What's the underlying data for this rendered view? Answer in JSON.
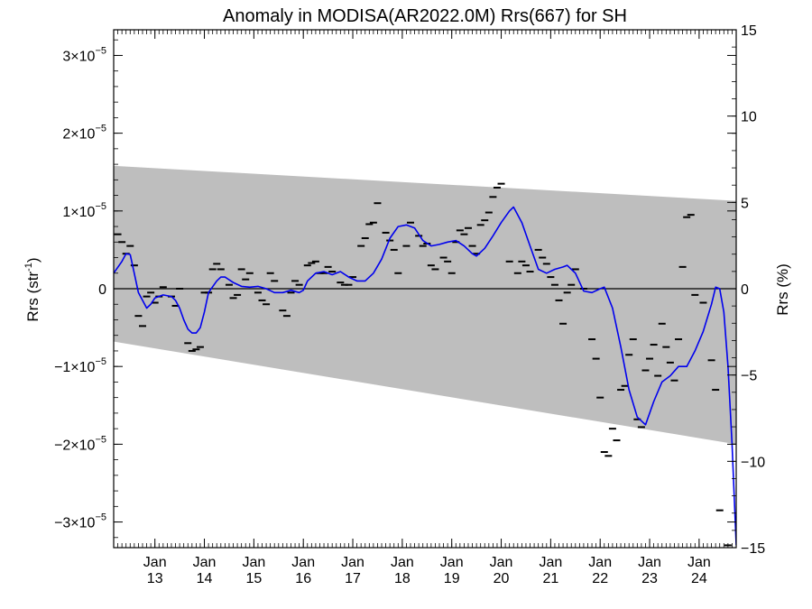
{
  "chart_data": {
    "type": "line",
    "title": "Anomaly in MODISA(AR2022.0M) Rrs(667) for SH",
    "ylabel_left": {
      "main": "Rrs (str",
      "exp": "-1",
      "end": ")"
    },
    "ylabel_right": "Rrs (%)",
    "x_range": [
      "2012-03",
      "2024-10"
    ],
    "y_left_range": [
      -3.33e-05,
      3.33e-05
    ],
    "y_right_range": [
      -15,
      15
    ],
    "y_left_ticks": [
      {
        "value": 3e-05,
        "mant": "3",
        "exp": "−5"
      },
      {
        "value": 2e-05,
        "mant": "2",
        "exp": "−5"
      },
      {
        "value": 1e-05,
        "mant": "1",
        "exp": "−5"
      },
      {
        "value": 0,
        "plain": "0"
      },
      {
        "value": -1e-05,
        "mant": "−1",
        "exp": "−5"
      },
      {
        "value": -2e-05,
        "mant": "−2",
        "exp": "−5"
      },
      {
        "value": -3e-05,
        "mant": "−3",
        "exp": "−5"
      }
    ],
    "y_right_ticks": [
      "15",
      "10",
      "5",
      "0",
      "−5",
      "−10",
      "−15"
    ],
    "x_ticks": [
      {
        "year": 2013,
        "month": "Jan",
        "label": "13"
      },
      {
        "year": 2014,
        "month": "Jan",
        "label": "14"
      },
      {
        "year": 2015,
        "month": "Jan",
        "label": "15"
      },
      {
        "year": 2016,
        "month": "Jan",
        "label": "16"
      },
      {
        "year": 2017,
        "month": "Jan",
        "label": "17"
      },
      {
        "year": 2018,
        "month": "Jan",
        "label": "18"
      },
      {
        "year": 2019,
        "month": "Jan",
        "label": "19"
      },
      {
        "year": 2020,
        "month": "Jan",
        "label": "20"
      },
      {
        "year": 2021,
        "month": "Jan",
        "label": "21"
      },
      {
        "year": 2022,
        "month": "Jan",
        "label": "22"
      },
      {
        "year": 2023,
        "month": "Jan",
        "label": "23"
      },
      {
        "year": 2024,
        "month": "Jan",
        "label": "24"
      }
    ],
    "band": {
      "color": "#bebebe",
      "upper": [
        {
          "x": "2012-03",
          "y": 1.58e-05
        },
        {
          "x": "2024-10",
          "y": 1.13e-05
        }
      ],
      "lower": [
        {
          "x": "2012-03",
          "y": -6.8e-06
        },
        {
          "x": "2024-10",
          "y": -2e-05
        }
      ]
    },
    "zero_line": true,
    "series": [
      {
        "kind": "line",
        "color": "#0000ee",
        "points": [
          [
            "2012-03",
            2e-06
          ],
          [
            "2012-05",
            3.5e-06
          ],
          [
            "2012-06",
            4.5e-06
          ],
          [
            "2012-07",
            4.4e-06
          ],
          [
            "2012-08",
            2e-06
          ],
          [
            "2012-09",
            -5e-07
          ],
          [
            "2012-10",
            -1.5e-06
          ],
          [
            "2012-11",
            -2.5e-06
          ],
          [
            "2012-12",
            -2e-06
          ],
          [
            "2013-01",
            -1.2e-06
          ],
          [
            "2013-03",
            -8e-07
          ],
          [
            "2013-05",
            -1e-06
          ],
          [
            "2013-06",
            -1.5e-06
          ],
          [
            "2013-07",
            -2.5e-06
          ],
          [
            "2013-08",
            -4e-06
          ],
          [
            "2013-09",
            -5.2e-06
          ],
          [
            "2013-10",
            -5.7e-06
          ],
          [
            "2013-11",
            -5.7e-06
          ],
          [
            "2013-12",
            -5e-06
          ],
          [
            "2014-01",
            -3e-06
          ],
          [
            "2014-02",
            -5e-07
          ],
          [
            "2014-04",
            1e-06
          ],
          [
            "2014-05",
            1.5e-06
          ],
          [
            "2014-06",
            1.5e-06
          ],
          [
            "2014-08",
            8e-07
          ],
          [
            "2014-10",
            3e-07
          ],
          [
            "2014-12",
            2e-07
          ],
          [
            "2015-02",
            3e-07
          ],
          [
            "2015-04",
            0.0
          ],
          [
            "2015-06",
            -5e-07
          ],
          [
            "2015-08",
            -5e-07
          ],
          [
            "2015-10",
            -2e-07
          ],
          [
            "2015-12",
            -5e-07
          ],
          [
            "2016-01",
            -2e-07
          ],
          [
            "2016-02",
            1e-06
          ],
          [
            "2016-04",
            2e-06
          ],
          [
            "2016-06",
            2.2e-06
          ],
          [
            "2016-08",
            1.8e-06
          ],
          [
            "2016-10",
            2.2e-06
          ],
          [
            "2016-12",
            1.5e-06
          ],
          [
            "2017-02",
            1e-06
          ],
          [
            "2017-04",
            1e-06
          ],
          [
            "2017-06",
            2e-06
          ],
          [
            "2017-08",
            3.8e-06
          ],
          [
            "2017-10",
            6.5e-06
          ],
          [
            "2017-12",
            8e-06
          ],
          [
            "2018-02",
            8.2e-06
          ],
          [
            "2018-04",
            7.8e-06
          ],
          [
            "2018-06",
            6.2e-06
          ],
          [
            "2018-08",
            5.5e-06
          ],
          [
            "2018-10",
            5.7e-06
          ],
          [
            "2018-12",
            6e-06
          ],
          [
            "2019-02",
            6.2e-06
          ],
          [
            "2019-04",
            5.5e-06
          ],
          [
            "2019-06",
            4.5e-06
          ],
          [
            "2019-07",
            4.2e-06
          ],
          [
            "2019-09",
            5.2e-06
          ],
          [
            "2019-11",
            6.8e-06
          ],
          [
            "2020-01",
            8.5e-06
          ],
          [
            "2020-03",
            1e-05
          ],
          [
            "2020-04",
            1.05e-05
          ],
          [
            "2020-06",
            8.5e-06
          ],
          [
            "2020-08",
            5.5e-06
          ],
          [
            "2020-10",
            2.5e-06
          ],
          [
            "2020-12",
            2e-06
          ],
          [
            "2021-02",
            2.5e-06
          ],
          [
            "2021-04",
            2.8e-06
          ],
          [
            "2021-05",
            3e-06
          ],
          [
            "2021-07",
            2e-06
          ],
          [
            "2021-09",
            -3e-07
          ],
          [
            "2021-11",
            -5e-07
          ],
          [
            "2022-01",
            0.0
          ],
          [
            "2022-02",
            2e-07
          ],
          [
            "2022-04",
            -2.5e-06
          ],
          [
            "2022-06",
            -7.5e-06
          ],
          [
            "2022-08",
            -1.3e-05
          ],
          [
            "2022-10",
            -1.65e-05
          ],
          [
            "2022-12",
            -1.75e-05
          ],
          [
            "2023-02",
            -1.45e-05
          ],
          [
            "2023-04",
            -1.2e-05
          ],
          [
            "2023-06",
            -1.12e-05
          ],
          [
            "2023-08",
            -1e-05
          ],
          [
            "2023-10",
            -1e-05
          ],
          [
            "2023-12",
            -8e-06
          ],
          [
            "2024-02",
            -5.5e-06
          ],
          [
            "2024-04",
            -2e-06
          ],
          [
            "2024-05",
            2e-07
          ],
          [
            "2024-06",
            0.0
          ],
          [
            "2024-07",
            -3e-06
          ],
          [
            "2024-08",
            -1e-05
          ],
          [
            "2024-09",
            -2e-05
          ],
          [
            "2024-10",
            -3.3e-05
          ]
        ]
      },
      {
        "kind": "dash-markers",
        "color": "#000000",
        "points": [
          [
            "2012-04",
            7e-06
          ],
          [
            "2012-05",
            6e-06
          ],
          [
            "2012-06",
            4.5e-06
          ],
          [
            "2012-07",
            5.5e-06
          ],
          [
            "2012-08",
            3e-06
          ],
          [
            "2012-09",
            -3.5e-06
          ],
          [
            "2012-10",
            -4.8e-06
          ],
          [
            "2012-11",
            -1e-06
          ],
          [
            "2012-12",
            -5e-07
          ],
          [
            "2013-01",
            -1.8e-06
          ],
          [
            "2013-02",
            -1e-06
          ],
          [
            "2013-03",
            2e-07
          ],
          [
            "2013-05",
            -1e-06
          ],
          [
            "2013-06",
            -2.2e-06
          ],
          [
            "2013-07",
            0.0
          ],
          [
            "2013-09",
            -7e-06
          ],
          [
            "2013-10",
            -8e-06
          ],
          [
            "2013-11",
            -7.8e-06
          ],
          [
            "2013-12",
            -7.5e-06
          ],
          [
            "2014-01",
            -5e-07
          ],
          [
            "2014-02",
            -5e-07
          ],
          [
            "2014-03",
            2.5e-06
          ],
          [
            "2014-04",
            3.2e-06
          ],
          [
            "2014-05",
            2.5e-06
          ],
          [
            "2014-07",
            5e-07
          ],
          [
            "2014-08",
            -1.2e-06
          ],
          [
            "2014-09",
            -8e-07
          ],
          [
            "2014-10",
            2.5e-06
          ],
          [
            "2014-11",
            1.2e-06
          ],
          [
            "2014-12",
            2e-06
          ],
          [
            "2015-02",
            -5e-07
          ],
          [
            "2015-03",
            -1.5e-06
          ],
          [
            "2015-04",
            -2e-06
          ],
          [
            "2015-05",
            2e-06
          ],
          [
            "2015-06",
            1e-06
          ],
          [
            "2015-08",
            -2.8e-06
          ],
          [
            "2015-09",
            -3.5e-06
          ],
          [
            "2015-10",
            -5e-07
          ],
          [
            "2015-11",
            1e-06
          ],
          [
            "2015-12",
            5e-07
          ],
          [
            "2016-02",
            3e-06
          ],
          [
            "2016-03",
            3.3e-06
          ],
          [
            "2016-04",
            3.5e-06
          ],
          [
            "2016-05",
            2e-06
          ],
          [
            "2016-06",
            2e-06
          ],
          [
            "2016-07",
            2.8e-06
          ],
          [
            "2016-08",
            2.2e-06
          ],
          [
            "2016-10",
            8e-07
          ],
          [
            "2016-11",
            5e-07
          ],
          [
            "2016-12",
            5e-07
          ],
          [
            "2017-01",
            1.5e-06
          ],
          [
            "2017-03",
            5.5e-06
          ],
          [
            "2017-04",
            6.5e-06
          ],
          [
            "2017-05",
            8.3e-06
          ],
          [
            "2017-06",
            8.5e-06
          ],
          [
            "2017-07",
            1.1e-05
          ],
          [
            "2017-09",
            7.2e-06
          ],
          [
            "2017-10",
            6.2e-06
          ],
          [
            "2017-11",
            5e-06
          ],
          [
            "2017-12",
            2e-06
          ],
          [
            "2018-02",
            5.5e-06
          ],
          [
            "2018-03",
            8.5e-06
          ],
          [
            "2018-05",
            6.8e-06
          ],
          [
            "2018-06",
            5.5e-06
          ],
          [
            "2018-07",
            5.8e-06
          ],
          [
            "2018-08",
            3e-06
          ],
          [
            "2018-09",
            2.5e-06
          ],
          [
            "2018-11",
            4e-06
          ],
          [
            "2018-12",
            3.5e-06
          ],
          [
            "2019-01",
            2e-06
          ],
          [
            "2019-02",
            6e-06
          ],
          [
            "2019-03",
            7.5e-06
          ],
          [
            "2019-04",
            7e-06
          ],
          [
            "2019-05",
            7.8e-06
          ],
          [
            "2019-06",
            5.5e-06
          ],
          [
            "2019-07",
            4.5e-06
          ],
          [
            "2019-08",
            8.2e-06
          ],
          [
            "2019-09",
            8.8e-06
          ],
          [
            "2019-10",
            9.8e-06
          ],
          [
            "2019-11",
            1.18e-05
          ],
          [
            "2019-12",
            1.3e-05
          ],
          [
            "2020-01",
            1.35e-05
          ],
          [
            "2020-03",
            3.5e-06
          ],
          [
            "2020-05",
            2e-06
          ],
          [
            "2020-06",
            3.5e-06
          ],
          [
            "2020-07",
            3e-06
          ],
          [
            "2020-08",
            2.2e-06
          ],
          [
            "2020-10",
            5e-06
          ],
          [
            "2020-11",
            4e-06
          ],
          [
            "2020-12",
            3.2e-06
          ],
          [
            "2021-01",
            1.5e-06
          ],
          [
            "2021-02",
            5e-07
          ],
          [
            "2021-03",
            -1.5e-06
          ],
          [
            "2021-04",
            -4.5e-06
          ],
          [
            "2021-05",
            -5e-07
          ],
          [
            "2021-06",
            5e-07
          ],
          [
            "2021-07",
            2.5e-06
          ],
          [
            "2021-09",
            0.0
          ],
          [
            "2021-11",
            -6.5e-06
          ],
          [
            "2021-12",
            -9e-06
          ],
          [
            "2022-01",
            -1.4e-05
          ],
          [
            "2022-02",
            -2.1e-05
          ],
          [
            "2022-03",
            -2.15e-05
          ],
          [
            "2022-04",
            -1.8e-05
          ],
          [
            "2022-05",
            -1.95e-05
          ],
          [
            "2022-06",
            -1.3e-05
          ],
          [
            "2022-07",
            -1.25e-05
          ],
          [
            "2022-08",
            -8.5e-06
          ],
          [
            "2022-09",
            -6.5e-06
          ],
          [
            "2022-10",
            -1.68e-05
          ],
          [
            "2022-11",
            -1.78e-05
          ],
          [
            "2022-12",
            -1.05e-05
          ],
          [
            "2023-01",
            -9e-06
          ],
          [
            "2023-02",
            -7.2e-06
          ],
          [
            "2023-03",
            -1.12e-05
          ],
          [
            "2023-04",
            -4.5e-06
          ],
          [
            "2023-05",
            -7.5e-06
          ],
          [
            "2023-06",
            -9.5e-06
          ],
          [
            "2023-07",
            -1.18e-05
          ],
          [
            "2023-08",
            -6.5e-06
          ],
          [
            "2023-09",
            2.8e-06
          ],
          [
            "2023-10",
            9.2e-06
          ],
          [
            "2023-11",
            9.5e-06
          ],
          [
            "2023-12",
            -8e-07
          ],
          [
            "2024-02",
            -1.8e-06
          ],
          [
            "2024-04",
            -9.2e-06
          ],
          [
            "2024-05",
            -1.3e-05
          ],
          [
            "2024-06",
            -2.85e-05
          ],
          [
            "2024-08",
            -3.3e-05
          ]
        ]
      }
    ]
  }
}
